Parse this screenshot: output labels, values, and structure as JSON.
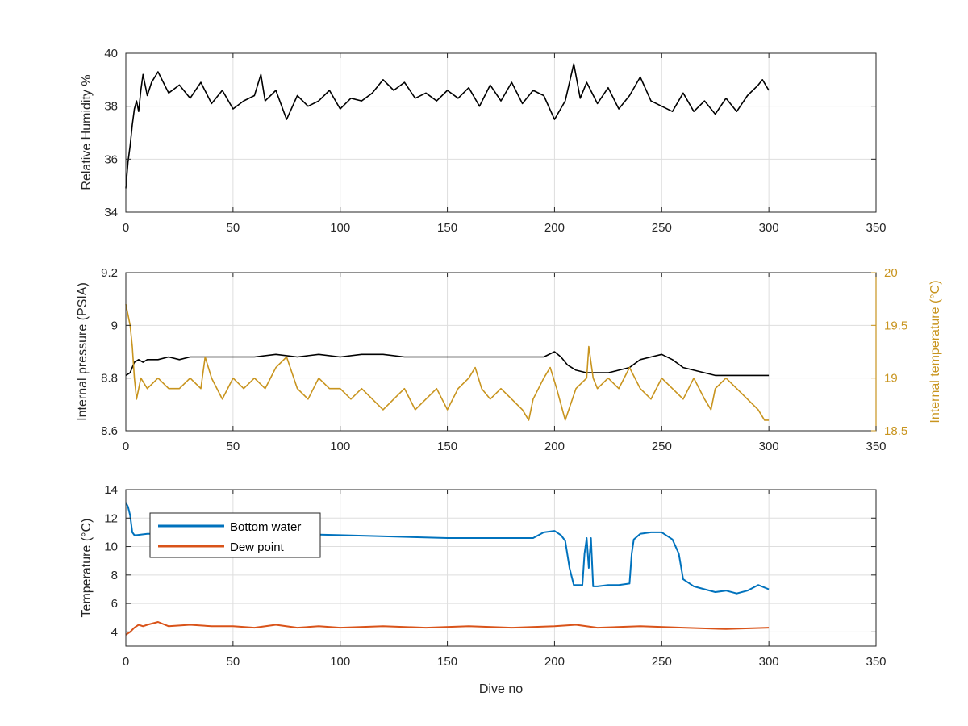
{
  "chart_data": [
    {
      "type": "line",
      "xlabel": "",
      "ylabel": "Relative Humidity %",
      "xlim": [
        0,
        350
      ],
      "ylim": [
        34,
        40
      ],
      "xticks": [
        "0",
        "50",
        "100",
        "150",
        "200",
        "250",
        "300",
        "350"
      ],
      "yticks": [
        "34",
        "36",
        "38",
        "40"
      ],
      "grid": true,
      "series": [
        {
          "color": "#000000",
          "x": [
            0,
            1,
            2,
            3,
            4,
            5,
            6,
            7,
            8,
            10,
            12,
            15,
            20,
            25,
            30,
            35,
            40,
            45,
            50,
            55,
            60,
            63,
            65,
            70,
            75,
            80,
            85,
            90,
            95,
            100,
            105,
            110,
            115,
            120,
            125,
            130,
            135,
            140,
            145,
            150,
            155,
            160,
            165,
            170,
            175,
            180,
            185,
            190,
            195,
            200,
            205,
            209,
            212,
            215,
            220,
            225,
            230,
            235,
            240,
            245,
            250,
            255,
            260,
            265,
            270,
            275,
            280,
            285,
            290,
            295,
            297,
            300
          ],
          "y": [
            34.9,
            35.9,
            36.5,
            37.3,
            37.9,
            38.2,
            37.8,
            38.6,
            39.2,
            38.4,
            38.9,
            39.3,
            38.5,
            38.8,
            38.3,
            38.9,
            38.1,
            38.6,
            37.9,
            38.2,
            38.4,
            39.2,
            38.2,
            38.6,
            37.5,
            38.4,
            38.0,
            38.2,
            38.6,
            37.9,
            38.3,
            38.2,
            38.5,
            39.0,
            38.6,
            38.9,
            38.3,
            38.5,
            38.2,
            38.6,
            38.3,
            38.7,
            38.0,
            38.8,
            38.2,
            38.9,
            38.1,
            38.6,
            38.4,
            37.5,
            38.2,
            39.6,
            38.3,
            38.9,
            38.1,
            38.7,
            37.9,
            38.4,
            39.1,
            38.2,
            38.0,
            37.8,
            38.5,
            37.8,
            38.2,
            37.7,
            38.3,
            37.8,
            38.4,
            38.8,
            39.0,
            38.6
          ]
        }
      ]
    },
    {
      "type": "line",
      "xlabel": "",
      "ylabel": "Internal pressure (PSIA)",
      "y2label": "Internal temperature (°C)",
      "xlim": [
        0,
        350
      ],
      "ylim": [
        8.6,
        9.2
      ],
      "y2lim": [
        18.5,
        20
      ],
      "xticks": [
        "0",
        "50",
        "100",
        "150",
        "200",
        "250",
        "300",
        "350"
      ],
      "yticks": [
        "8.6",
        "8.8",
        "9",
        "9.2"
      ],
      "y2ticks": [
        "18.5",
        "19",
        "19.5",
        "20"
      ],
      "y2color": "#c8941e",
      "grid": true,
      "series": [
        {
          "axis": "left",
          "color": "#000000",
          "x": [
            0,
            2,
            4,
            6,
            8,
            10,
            15,
            20,
            25,
            30,
            35,
            40,
            50,
            60,
            70,
            80,
            90,
            100,
            110,
            120,
            130,
            140,
            150,
            160,
            170,
            180,
            190,
            195,
            200,
            203,
            206,
            210,
            215,
            220,
            225,
            230,
            235,
            240,
            245,
            250,
            255,
            260,
            265,
            270,
            275,
            280,
            290,
            300
          ],
          "y": [
            8.81,
            8.82,
            8.86,
            8.87,
            8.86,
            8.87,
            8.87,
            8.88,
            8.87,
            8.88,
            8.88,
            8.88,
            8.88,
            8.88,
            8.89,
            8.88,
            8.89,
            8.88,
            8.89,
            8.89,
            8.88,
            8.88,
            8.88,
            8.88,
            8.88,
            8.88,
            8.88,
            8.88,
            8.9,
            8.88,
            8.85,
            8.83,
            8.82,
            8.82,
            8.82,
            8.83,
            8.84,
            8.87,
            8.88,
            8.89,
            8.87,
            8.84,
            8.83,
            8.82,
            8.81,
            8.81,
            8.81,
            8.81
          ]
        },
        {
          "axis": "right",
          "color": "#c8941e",
          "x": [
            0,
            1,
            2,
            3,
            4,
            5,
            7,
            10,
            15,
            20,
            25,
            30,
            35,
            37,
            40,
            45,
            50,
            55,
            60,
            65,
            70,
            75,
            80,
            85,
            90,
            95,
            100,
            105,
            110,
            115,
            120,
            125,
            130,
            135,
            140,
            145,
            150,
            155,
            160,
            163,
            166,
            170,
            175,
            180,
            185,
            188,
            190,
            195,
            198,
            201,
            205,
            210,
            215,
            216,
            218,
            220,
            225,
            230,
            235,
            240,
            245,
            250,
            255,
            260,
            265,
            270,
            273,
            275,
            280,
            285,
            290,
            295,
            298,
            300
          ],
          "y": [
            19.7,
            19.6,
            19.5,
            19.3,
            19.0,
            18.8,
            19.0,
            18.9,
            19.0,
            18.9,
            18.9,
            19.0,
            18.9,
            19.2,
            19.0,
            18.8,
            19.0,
            18.9,
            19.0,
            18.9,
            19.1,
            19.2,
            18.9,
            18.8,
            19.0,
            18.9,
            18.9,
            18.8,
            18.9,
            18.8,
            18.7,
            18.8,
            18.9,
            18.7,
            18.8,
            18.9,
            18.7,
            18.9,
            19.0,
            19.1,
            18.9,
            18.8,
            18.9,
            18.8,
            18.7,
            18.6,
            18.8,
            19.0,
            19.1,
            18.9,
            18.6,
            18.9,
            19.0,
            19.3,
            19.0,
            18.9,
            19.0,
            18.9,
            19.1,
            18.9,
            18.8,
            19.0,
            18.9,
            18.8,
            19.0,
            18.8,
            18.7,
            18.9,
            19.0,
            18.9,
            18.8,
            18.7,
            18.6,
            18.6
          ]
        }
      ]
    },
    {
      "type": "line",
      "xlabel": "Dive no",
      "ylabel": "Temperature (°C)",
      "xlim": [
        0,
        350
      ],
      "ylim": [
        3,
        14
      ],
      "xticks": [
        "0",
        "50",
        "100",
        "150",
        "200",
        "250",
        "300",
        "350"
      ],
      "yticks": [
        "4",
        "6",
        "8",
        "10",
        "12",
        "14"
      ],
      "grid": true,
      "legend": "top-left",
      "series": [
        {
          "name": "Bottom water",
          "color": "#0072bd",
          "x": [
            0,
            1,
            2,
            3,
            4,
            5,
            10,
            20,
            50,
            100,
            150,
            190,
            195,
            200,
            203,
            205,
            207,
            209,
            211,
            213,
            214,
            215,
            216,
            217,
            218,
            220,
            225,
            230,
            235,
            236,
            237,
            240,
            245,
            250,
            255,
            258,
            260,
            262,
            265,
            270,
            275,
            280,
            285,
            290,
            295,
            300
          ],
          "y": [
            13.1,
            12.8,
            12.2,
            11.0,
            10.8,
            10.8,
            10.9,
            10.9,
            11.0,
            10.8,
            10.6,
            10.6,
            11.0,
            11.1,
            10.8,
            10.4,
            8.5,
            7.3,
            7.3,
            7.3,
            9.5,
            10.6,
            8.5,
            10.6,
            7.2,
            7.2,
            7.3,
            7.3,
            7.4,
            9.5,
            10.5,
            10.9,
            11.0,
            11.0,
            10.5,
            9.5,
            7.7,
            7.5,
            7.2,
            7.0,
            6.8,
            6.9,
            6.7,
            6.9,
            7.3,
            7.0
          ]
        },
        {
          "name": "Dew point",
          "color": "#d95319",
          "x": [
            0,
            2,
            4,
            6,
            8,
            10,
            15,
            20,
            30,
            40,
            50,
            60,
            70,
            80,
            90,
            100,
            120,
            140,
            160,
            180,
            200,
            210,
            220,
            240,
            260,
            280,
            300
          ],
          "y": [
            3.8,
            4.0,
            4.3,
            4.5,
            4.4,
            4.5,
            4.7,
            4.4,
            4.5,
            4.4,
            4.4,
            4.3,
            4.5,
            4.3,
            4.4,
            4.3,
            4.4,
            4.3,
            4.4,
            4.3,
            4.4,
            4.5,
            4.3,
            4.4,
            4.3,
            4.2,
            4.3
          ]
        }
      ]
    }
  ]
}
